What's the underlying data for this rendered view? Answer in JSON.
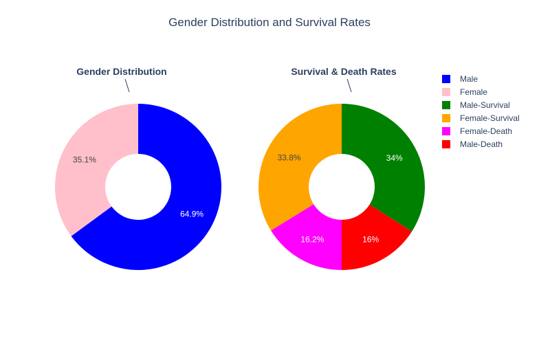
{
  "title": "Gender Distribution and Survival Rates",
  "chart_data": [
    {
      "type": "pie",
      "hole": true,
      "title": "Gender Distribution",
      "slices": [
        {
          "label": "Male",
          "percent": 64.9,
          "display": "64.9%",
          "color": "#0000ff",
          "text_color": "#ffffff"
        },
        {
          "label": "Female",
          "percent": 35.1,
          "display": "35.1%",
          "color": "#ffc0cb",
          "text_color": "#444444"
        }
      ]
    },
    {
      "type": "pie",
      "hole": true,
      "title": "Survival & Death Rates",
      "slices": [
        {
          "label": "Male-Survival",
          "percent": 34.0,
          "display": "34%",
          "color": "#008000",
          "text_color": "#ffffff"
        },
        {
          "label": "Male-Death",
          "percent": 16.0,
          "display": "16%",
          "color": "#ff0000",
          "text_color": "#ffffff"
        },
        {
          "label": "Female-Death",
          "percent": 16.2,
          "display": "16.2%",
          "color": "#ff00ff",
          "text_color": "#ffffff"
        },
        {
          "label": "Female-Survival",
          "percent": 33.8,
          "display": "33.8%",
          "color": "#ffa500",
          "text_color": "#444444"
        }
      ]
    }
  ],
  "legend": {
    "position": "right",
    "items": [
      {
        "label": "Male",
        "color": "#0000ff"
      },
      {
        "label": "Female",
        "color": "#ffc0cb"
      },
      {
        "label": "Male-Survival",
        "color": "#008000"
      },
      {
        "label": "Female-Survival",
        "color": "#ffa500"
      },
      {
        "label": "Female-Death",
        "color": "#ff00ff"
      },
      {
        "label": "Male-Death",
        "color": "#ff0000"
      }
    ]
  }
}
